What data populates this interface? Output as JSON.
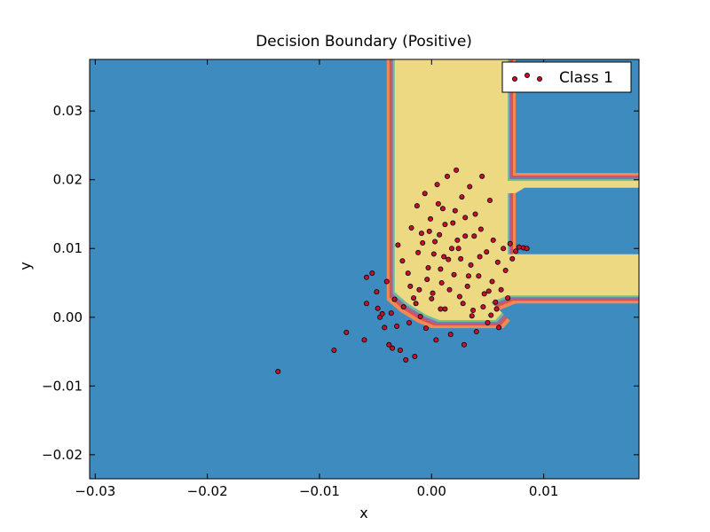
{
  "chart_data": {
    "type": "scatter",
    "title": "Decision Boundary (Positive)",
    "xlabel": "x",
    "ylabel": "y",
    "xlim": [
      -0.0305,
      0.0185
    ],
    "ylim": [
      -0.0235,
      0.0375
    ],
    "x_ticks": [
      -0.03,
      -0.02,
      -0.01,
      0.0,
      0.01
    ],
    "x_tick_labels": [
      "−0.03",
      "−0.02",
      "−0.01",
      "0.00",
      "0.01"
    ],
    "y_ticks": [
      -0.02,
      -0.01,
      0.0,
      0.01,
      0.02,
      0.03
    ],
    "y_tick_labels": [
      "−0.02",
      "−0.01",
      "0.00",
      "0.01",
      "0.02",
      "0.03"
    ],
    "grid": false,
    "legend_position": "top-right",
    "legend": [
      "Class 1"
    ],
    "background": {
      "description": "filled decision-region contour",
      "negative_color": "#3e8bc0",
      "positive_color": "#ecd982",
      "edge_colors": [
        "#f08a55",
        "#d9534f",
        "#8a6fb0",
        "#6cbf9a"
      ]
    },
    "series": [
      {
        "name": "Class 1",
        "marker_color": "#c8102e",
        "edge_color": "#000000",
        "points": [
          [
            -0.0137,
            -0.0079
          ],
          [
            -0.0087,
            -0.0048
          ],
          [
            -0.0076,
            -0.0022
          ],
          [
            -0.006,
            -0.0033
          ],
          [
            -0.0058,
            0.0058
          ],
          [
            -0.0058,
            0.002
          ],
          [
            -0.0053,
            0.0064
          ],
          [
            -0.0049,
            0.0037
          ],
          [
            -0.0048,
            0.0013
          ],
          [
            -0.0046,
            0.0
          ],
          [
            -0.0044,
            0.0005
          ],
          [
            -0.0042,
            -0.0015
          ],
          [
            -0.004,
            0.0052
          ],
          [
            -0.0038,
            -0.004
          ],
          [
            -0.0036,
            0.0006
          ],
          [
            -0.0035,
            -0.0045
          ],
          [
            -0.0033,
            0.0026
          ],
          [
            -0.0031,
            -0.0013
          ],
          [
            -0.003,
            0.0105
          ],
          [
            -0.0028,
            -0.0048
          ],
          [
            -0.0026,
            0.0082
          ],
          [
            -0.0025,
            0.0015
          ],
          [
            -0.0023,
            -0.0062
          ],
          [
            -0.0021,
            0.0064
          ],
          [
            -0.002,
            -0.0008
          ],
          [
            -0.0018,
            0.013
          ],
          [
            -0.0016,
            0.0028
          ],
          [
            -0.0015,
            -0.0057
          ],
          [
            -0.0013,
            0.0162
          ],
          [
            -0.0011,
            0.004
          ],
          [
            -0.001,
            0.0001
          ],
          [
            -0.0008,
            0.0108
          ],
          [
            -0.0006,
            0.018
          ],
          [
            -0.0005,
            -0.0016
          ],
          [
            -0.0003,
            0.0072
          ],
          [
            -0.0001,
            0.0143
          ],
          [
            0.0,
            0.0027
          ],
          [
            0.0002,
            0.0092
          ],
          [
            0.0004,
            -0.0033
          ],
          [
            0.0005,
            0.0193
          ],
          [
            0.0007,
            0.012
          ],
          [
            0.0009,
            0.005
          ],
          [
            0.001,
            0.0158
          ],
          [
            0.0012,
            0.0012
          ],
          [
            0.0014,
            0.0205
          ],
          [
            0.0015,
            0.0084
          ],
          [
            0.0017,
            -0.0025
          ],
          [
            0.0019,
            0.0137
          ],
          [
            0.002,
            0.0062
          ],
          [
            0.0022,
            0.0214
          ],
          [
            0.0024,
            0.01
          ],
          [
            0.0025,
            0.003
          ],
          [
            0.0027,
            0.0175
          ],
          [
            0.0029,
            -0.004
          ],
          [
            0.003,
            0.0118
          ],
          [
            0.0032,
            0.0045
          ],
          [
            0.0034,
            0.019
          ],
          [
            0.0035,
            0.0076
          ],
          [
            0.0037,
            0.001
          ],
          [
            0.0039,
            0.015
          ],
          [
            0.004,
            -0.0021
          ],
          [
            0.0042,
            0.006
          ],
          [
            0.0044,
            0.0128
          ],
          [
            0.0045,
            0.0205
          ],
          [
            0.0047,
            0.0034
          ],
          [
            0.0049,
            0.0095
          ],
          [
            0.005,
            -0.0008
          ],
          [
            0.0052,
            0.017
          ],
          [
            0.0054,
            0.0052
          ],
          [
            0.0055,
            0.0112
          ],
          [
            0.0057,
            0.0022
          ],
          [
            0.0059,
            0.008
          ],
          [
            0.006,
            -0.0015
          ],
          [
            0.0062,
            0.004
          ],
          [
            0.0064,
            0.01
          ],
          [
            0.0066,
            0.0068
          ],
          [
            0.0068,
            0.0028
          ],
          [
            0.007,
            0.0107
          ],
          [
            0.0072,
            0.0085
          ],
          [
            0.0075,
            0.0096
          ],
          [
            0.0078,
            0.0102
          ],
          [
            0.0082,
            0.0101
          ],
          [
            0.0085,
            0.01
          ],
          [
            -0.0012,
            0.0094
          ],
          [
            0.0003,
            0.011
          ],
          [
            0.0018,
            0.01
          ],
          [
            0.0008,
            0.007
          ],
          [
            0.0026,
            0.0085
          ],
          [
            -0.0004,
            0.0055
          ],
          [
            0.0012,
            0.0135
          ],
          [
            0.003,
            0.0145
          ],
          [
            0.0006,
            0.0165
          ],
          [
            0.0021,
            0.0155
          ],
          [
            -0.0009,
            0.0122
          ],
          [
            0.0038,
            0.0118
          ],
          [
            0.0016,
            0.004
          ],
          [
            0.0001,
            0.0035
          ],
          [
            0.0033,
            0.006
          ],
          [
            -0.0019,
            0.0045
          ],
          [
            0.0043,
            0.0088
          ],
          [
            0.0023,
            0.0112
          ],
          [
            0.0011,
            0.0088
          ],
          [
            -0.0002,
            0.0125
          ],
          [
            0.0028,
            0.002
          ],
          [
            0.0046,
            0.0015
          ],
          [
            0.0051,
            0.0038
          ],
          [
            -0.0014,
            0.002
          ],
          [
            0.0008,
            0.0012
          ],
          [
            0.0036,
            0.0002
          ],
          [
            0.0053,
            0.0003
          ],
          [
            0.0058,
            0.0012
          ]
        ]
      }
    ]
  }
}
